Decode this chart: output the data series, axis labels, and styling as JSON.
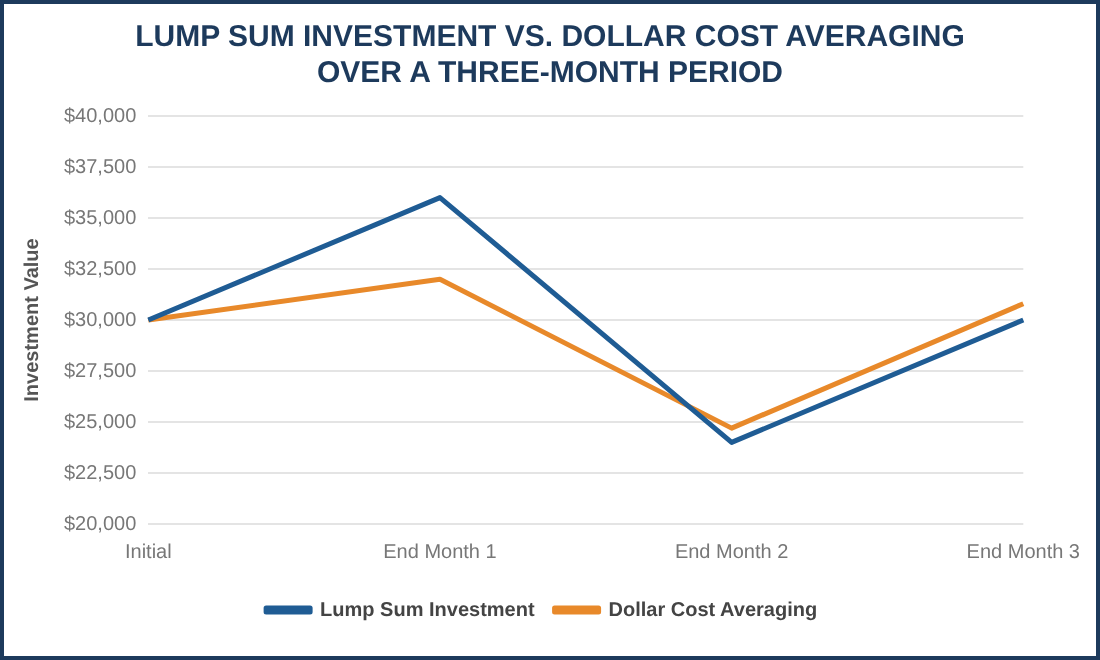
{
  "chart_data": {
    "type": "line",
    "title": "LUMP SUM INVESTMENT VS. DOLLAR COST AVERAGING OVER A THREE-MONTH PERIOD",
    "ylabel": "Investment Value",
    "categories": [
      "Initial",
      "End Month 1",
      "End Month 2",
      "End Month 3"
    ],
    "series": [
      {
        "name": "Lump Sum Investment",
        "color": "#1f5c94",
        "values": [
          30000,
          36000,
          24000,
          30000
        ]
      },
      {
        "name": "Dollar Cost Averaging",
        "color": "#e8892a",
        "values": [
          30000,
          32000,
          24700,
          30800
        ]
      }
    ],
    "ylim": [
      20000,
      40000
    ],
    "yticks": [
      {
        "value": 20000,
        "label": "$20,000"
      },
      {
        "value": 22500,
        "label": "$22,500"
      },
      {
        "value": 25000,
        "label": "$25,000"
      },
      {
        "value": 27500,
        "label": "$27,500"
      },
      {
        "value": 30000,
        "label": "$30,000"
      },
      {
        "value": 32500,
        "label": "$32,500"
      },
      {
        "value": 35000,
        "label": "$35,000"
      },
      {
        "value": 37500,
        "label": "$37,500"
      },
      {
        "value": 40000,
        "label": "$40,000"
      }
    ],
    "grid": "y",
    "legend": "bottom",
    "marker": "none",
    "line_style": "solid"
  }
}
